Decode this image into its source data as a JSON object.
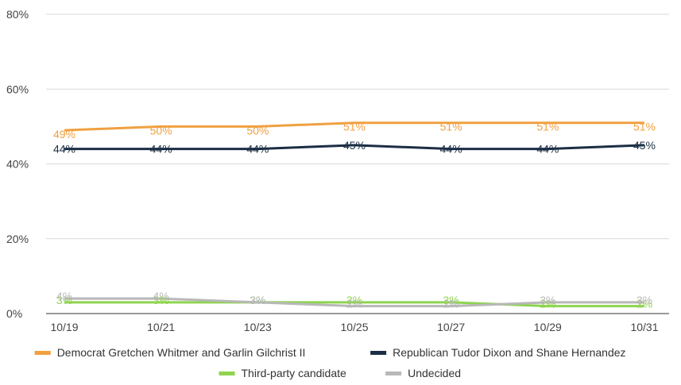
{
  "chart_data": {
    "type": "line",
    "title": "",
    "xlabel": "",
    "ylabel": "",
    "categories": [
      "10/19",
      "10/21",
      "10/23",
      "10/25",
      "10/27",
      "10/29",
      "10/31"
    ],
    "ylim": [
      0,
      80
    ],
    "yticks": [
      0,
      20,
      40,
      60,
      80
    ],
    "ytick_labels": [
      "0%",
      "20%",
      "40%",
      "60%",
      "80%"
    ],
    "grid": true,
    "legend_position": "bottom",
    "series": [
      {
        "name": "Democrat Gretchen Whitmer and Garlin Gilchrist II",
        "color": "#f0a040",
        "values": [
          49,
          50,
          50,
          51,
          51,
          51,
          51
        ],
        "labels": [
          "49%",
          "50%",
          "50%",
          "51%",
          "51%",
          "51%",
          "51%"
        ]
      },
      {
        "name": "Republican Tudor Dixon and Shane Hernandez",
        "color": "#1b2e45",
        "values": [
          44,
          44,
          44,
          45,
          44,
          44,
          45
        ],
        "labels": [
          "44%",
          "44%",
          "44%",
          "45%",
          "44%",
          "44%",
          "45%"
        ]
      },
      {
        "name": "Third-party candidate",
        "color": "#8ed44f",
        "values": [
          3,
          3,
          3,
          3,
          3,
          2,
          2
        ],
        "labels": [
          "3%",
          "3%",
          "3%",
          "3%",
          "3%",
          "2%",
          "2%"
        ]
      },
      {
        "name": "Undecided",
        "color": "#b8b8b8",
        "values": [
          4,
          4,
          3,
          2,
          2,
          3,
          3
        ],
        "labels": [
          "4%",
          "4%",
          "3%",
          "2%",
          "2%",
          "3%",
          "3%"
        ]
      }
    ]
  }
}
